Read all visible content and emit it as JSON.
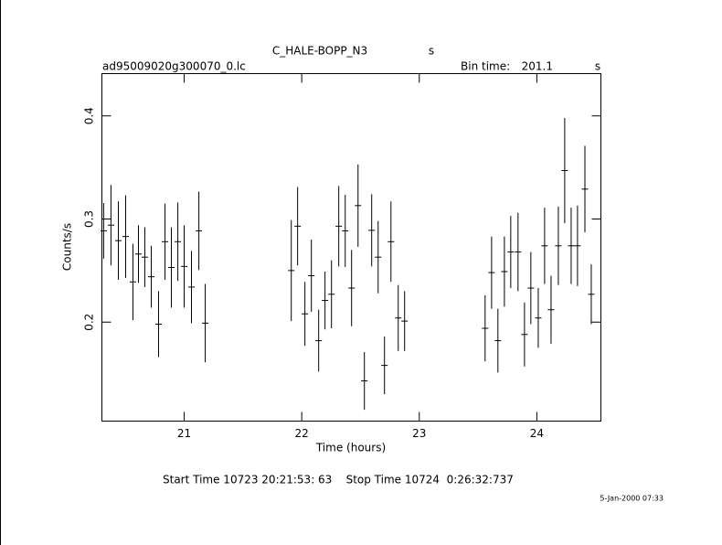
{
  "chart_data": {
    "type": "errorbar",
    "title": "C_HALE-BOPP_N3",
    "title_unit": "s",
    "file_name": "ad95009020g300070_0.lc",
    "bin_time_label": "Bin time:",
    "bin_time": "201.1",
    "bin_time_unit": "s",
    "xlabel": "Time (hours)",
    "ylabel": "Counts/s",
    "footer": "Start Time 10723 20:21:53: 63    Stop Time 10724  0:26:32:737",
    "date_stamp": "5-Jan-2000 07:33",
    "color": "#000000",
    "xlim": [
      20.3,
      24.545
    ],
    "ylim": [
      0.104,
      0.441
    ],
    "xticks": [
      21,
      22,
      23,
      24
    ],
    "yticks": [
      0.2,
      0.3,
      0.4
    ],
    "x": [
      20.315,
      20.377,
      20.44,
      20.502,
      20.564,
      20.611,
      20.665,
      20.72,
      20.782,
      20.837,
      20.891,
      20.946,
      21.0,
      21.062,
      21.125,
      21.179,
      21.911,
      21.965,
      22.027,
      22.082,
      22.144,
      22.198,
      22.253,
      22.315,
      22.37,
      22.424,
      22.479,
      22.533,
      22.595,
      22.65,
      22.704,
      22.759,
      22.821,
      22.875,
      23.56,
      23.615,
      23.669,
      23.724,
      23.778,
      23.84,
      23.895,
      23.949,
      24.012,
      24.066,
      24.121,
      24.183,
      24.237,
      24.292,
      24.346,
      24.409,
      24.463
    ],
    "values": [
      0.2885,
      0.294,
      0.279,
      0.283,
      0.239,
      0.266,
      0.263,
      0.244,
      0.198,
      0.278,
      0.253,
      0.278,
      0.254,
      0.234,
      0.2885,
      0.199,
      0.25,
      0.293,
      0.208,
      0.245,
      0.182,
      0.221,
      0.227,
      0.293,
      0.2885,
      0.233,
      0.313,
      0.143,
      0.289,
      0.263,
      0.158,
      0.278,
      0.204,
      0.201,
      0.194,
      0.248,
      0.182,
      0.249,
      0.268,
      0.268,
      0.188,
      0.233,
      0.204,
      0.274,
      0.212,
      0.274,
      0.347,
      0.274,
      0.274,
      0.329,
      0.227
    ],
    "errors": [
      0.027,
      0.039,
      0.038,
      0.04,
      0.037,
      0.028,
      0.029,
      0.03,
      0.032,
      0.037,
      0.039,
      0.038,
      0.04,
      0.035,
      0.038,
      0.038,
      0.049,
      0.038,
      0.031,
      0.035,
      0.03,
      0.028,
      0.033,
      0.039,
      0.035,
      0.037,
      0.04,
      0.028,
      0.035,
      0.035,
      0.028,
      0.039,
      0.032,
      0.029,
      0.032,
      0.035,
      0.031,
      0.034,
      0.035,
      0.038,
      0.031,
      0.035,
      0.029,
      0.037,
      0.033,
      0.038,
      0.051,
      0.037,
      0.039,
      0.042,
      0.029
    ]
  }
}
